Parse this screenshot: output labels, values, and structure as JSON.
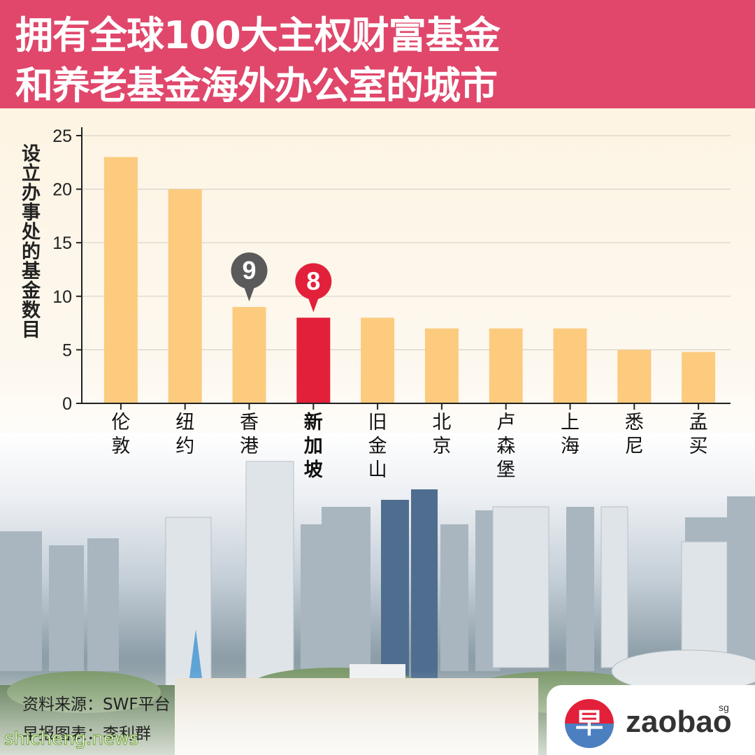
{
  "title": {
    "line1": "拥有全球100大主权财富基金",
    "line2": "和养老基金海外办公室的城市"
  },
  "chart_data": {
    "type": "bar",
    "ylabel": "设立办事处的基金数目",
    "ylim": [
      0,
      25
    ],
    "yticks": [
      0,
      5,
      10,
      15,
      20,
      25
    ],
    "grid": true,
    "categories": [
      "伦敦",
      "纽约",
      "香港",
      "新加坡",
      "旧金山",
      "北京",
      "卢森堡",
      "上海",
      "悉尼",
      "孟买"
    ],
    "values": [
      23,
      20,
      9,
      8,
      8,
      7,
      7,
      7,
      5,
      4.8
    ],
    "bar_color": "#fccb7e",
    "highlight_color": "#e3203a",
    "highlight_category": "新加坡",
    "callouts": [
      {
        "category": "香港",
        "label": "9",
        "color": "#5a5a5a"
      },
      {
        "category": "新加坡",
        "label": "8",
        "color": "#e3203a"
      }
    ]
  },
  "source": {
    "line1": "资料来源：SWF平台",
    "line2": "早报图表：李利群"
  },
  "watermark": "shicheng.news",
  "logo": {
    "glyph": "早",
    "text": "zaobao",
    "suffix": "sg"
  }
}
